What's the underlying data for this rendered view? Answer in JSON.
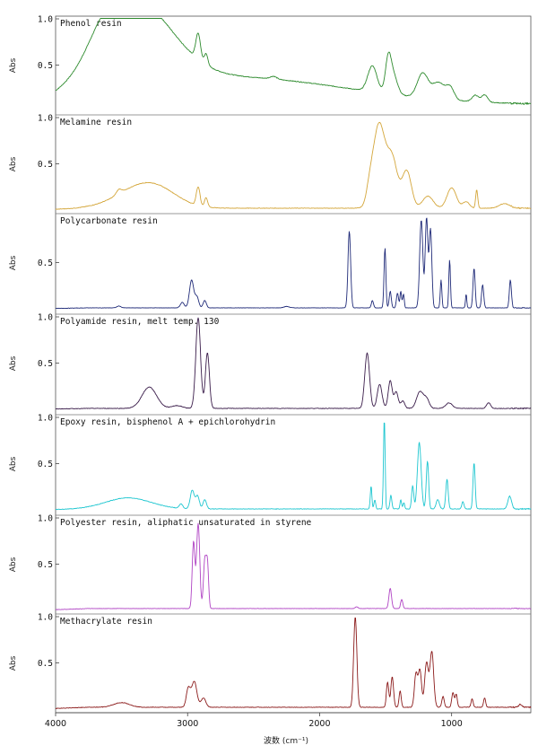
{
  "chart_data": {
    "type": "line",
    "xlabel": "波数 (cm⁻¹)",
    "xlim": [
      4000,
      400
    ],
    "x_reversed": true,
    "x_ticks": [
      4000,
      3000,
      2000,
      1000
    ],
    "grid": false,
    "legend": "none",
    "panels": [
      {
        "title": "Phenol resin",
        "ylabel": "Abs",
        "y_ticks": [
          {
            "value": 1.0,
            "label": "1.0"
          },
          {
            "value": 0.5,
            "label": "0.5"
          }
        ],
        "ylim": [
          0,
          1.0
        ],
        "color": "#2e8b2e",
        "baseline": 0.07,
        "broad": [
          {
            "c": 3400,
            "w": 280,
            "h": 0.88
          },
          {
            "c": 2700,
            "w": 900,
            "h": 0.3
          },
          {
            "c": 3600,
            "w": 130,
            "h": 0.22
          }
        ],
        "peaks": [
          {
            "c": 2920,
            "w": 18,
            "h": 0.28
          },
          {
            "c": 2860,
            "w": 14,
            "h": 0.12
          },
          {
            "c": 1600,
            "w": 35,
            "h": 0.28
          },
          {
            "c": 1480,
            "w": 22,
            "h": 0.36
          },
          {
            "c": 1440,
            "w": 30,
            "h": 0.2
          },
          {
            "c": 1220,
            "w": 40,
            "h": 0.26
          },
          {
            "c": 1100,
            "w": 50,
            "h": 0.18
          },
          {
            "c": 1010,
            "w": 30,
            "h": 0.12
          },
          {
            "c": 820,
            "w": 25,
            "h": 0.07
          },
          {
            "c": 750,
            "w": 22,
            "h": 0.08
          },
          {
            "c": 2350,
            "w": 25,
            "h": 0.03
          }
        ],
        "noise": 0.004
      },
      {
        "title": "Melamine resin",
        "ylabel": "Abs",
        "y_ticks": [
          {
            "value": 1.0,
            "label": "1.0"
          },
          {
            "value": 0.5,
            "label": "0.5"
          }
        ],
        "ylim": [
          0,
          1.0
        ],
        "color": "#d4a63a",
        "baseline": 0.02,
        "broad": [
          {
            "c": 3350,
            "w": 190,
            "h": 0.22
          },
          {
            "c": 3200,
            "w": 150,
            "h": 0.08
          }
        ],
        "peaks": [
          {
            "c": 3520,
            "w": 20,
            "h": 0.05
          },
          {
            "c": 2920,
            "w": 14,
            "h": 0.2
          },
          {
            "c": 2860,
            "w": 12,
            "h": 0.1
          },
          {
            "c": 1620,
            "w": 25,
            "h": 0.15
          },
          {
            "c": 1550,
            "w": 45,
            "h": 0.9
          },
          {
            "c": 1450,
            "w": 40,
            "h": 0.52
          },
          {
            "c": 1340,
            "w": 35,
            "h": 0.4
          },
          {
            "c": 1180,
            "w": 40,
            "h": 0.13
          },
          {
            "c": 1000,
            "w": 35,
            "h": 0.22
          },
          {
            "c": 890,
            "w": 25,
            "h": 0.07
          },
          {
            "c": 810,
            "w": 8,
            "h": 0.2
          },
          {
            "c": 600,
            "w": 40,
            "h": 0.05
          }
        ],
        "noise": 0.003
      },
      {
        "title": "Polycarbonate resin",
        "ylabel": "Abs",
        "y_ticks": [
          {
            "value": 0.5,
            "label": "0.5"
          }
        ],
        "ylim": [
          0,
          1.0
        ],
        "color": "#1f2a78",
        "baseline": 0.01,
        "broad": [],
        "peaks": [
          {
            "c": 3520,
            "w": 15,
            "h": 0.02
          },
          {
            "c": 3040,
            "w": 14,
            "h": 0.06
          },
          {
            "c": 2970,
            "w": 16,
            "h": 0.3
          },
          {
            "c": 2930,
            "w": 14,
            "h": 0.12
          },
          {
            "c": 2870,
            "w": 12,
            "h": 0.08
          },
          {
            "c": 1775,
            "w": 10,
            "h": 0.83
          },
          {
            "c": 1600,
            "w": 8,
            "h": 0.08
          },
          {
            "c": 1505,
            "w": 7,
            "h": 0.65
          },
          {
            "c": 1465,
            "w": 8,
            "h": 0.18
          },
          {
            "c": 1410,
            "w": 8,
            "h": 0.16
          },
          {
            "c": 1385,
            "w": 6,
            "h": 0.18
          },
          {
            "c": 1365,
            "w": 6,
            "h": 0.15
          },
          {
            "c": 1230,
            "w": 12,
            "h": 0.95
          },
          {
            "c": 1190,
            "w": 10,
            "h": 0.97
          },
          {
            "c": 1160,
            "w": 10,
            "h": 0.85
          },
          {
            "c": 1080,
            "w": 6,
            "h": 0.3
          },
          {
            "c": 1015,
            "w": 6,
            "h": 0.52
          },
          {
            "c": 890,
            "w": 5,
            "h": 0.15
          },
          {
            "c": 830,
            "w": 8,
            "h": 0.43
          },
          {
            "c": 765,
            "w": 8,
            "h": 0.25
          },
          {
            "c": 555,
            "w": 8,
            "h": 0.3
          },
          {
            "c": 2250,
            "w": 20,
            "h": 0.015
          }
        ],
        "noise": 0.002
      },
      {
        "title": "Polyamide resin, melt temp. 130",
        "ylabel": "Abs",
        "y_ticks": [
          {
            "value": 1.0,
            "label": "1.0"
          },
          {
            "value": 0.5,
            "label": "0.5"
          }
        ],
        "ylim": [
          0,
          1.0
        ],
        "color": "#3a1c4a",
        "baseline": 0.01,
        "broad": [
          {
            "c": 3290,
            "w": 55,
            "h": 0.23
          },
          {
            "c": 3080,
            "w": 40,
            "h": 0.03
          }
        ],
        "peaks": [
          {
            "c": 2920,
            "w": 18,
            "h": 0.98
          },
          {
            "c": 2850,
            "w": 15,
            "h": 0.6
          },
          {
            "c": 1640,
            "w": 18,
            "h": 0.6
          },
          {
            "c": 1545,
            "w": 18,
            "h": 0.26
          },
          {
            "c": 1465,
            "w": 15,
            "h": 0.3
          },
          {
            "c": 1420,
            "w": 15,
            "h": 0.18
          },
          {
            "c": 1370,
            "w": 15,
            "h": 0.08
          },
          {
            "c": 1240,
            "w": 25,
            "h": 0.18
          },
          {
            "c": 1190,
            "w": 20,
            "h": 0.1
          },
          {
            "c": 1020,
            "w": 25,
            "h": 0.06
          },
          {
            "c": 720,
            "w": 15,
            "h": 0.06
          }
        ],
        "noise": 0.003
      },
      {
        "title": "Epoxy resin, bisphenol A + epichlorohydrin",
        "ylabel": "Abs",
        "y_ticks": [
          {
            "value": 1.0,
            "label": "1.0"
          },
          {
            "value": 0.5,
            "label": "0.5"
          }
        ],
        "ylim": [
          0,
          1.0
        ],
        "color": "#1ec6d0",
        "baseline": 0.01,
        "broad": [
          {
            "c": 3450,
            "w": 170,
            "h": 0.12
          }
        ],
        "peaks": [
          {
            "c": 3050,
            "w": 12,
            "h": 0.05
          },
          {
            "c": 2965,
            "w": 15,
            "h": 0.2
          },
          {
            "c": 2925,
            "w": 14,
            "h": 0.14
          },
          {
            "c": 2870,
            "w": 13,
            "h": 0.1
          },
          {
            "c": 1610,
            "w": 6,
            "h": 0.25
          },
          {
            "c": 1582,
            "w": 6,
            "h": 0.1
          },
          {
            "c": 1510,
            "w": 6,
            "h": 0.98
          },
          {
            "c": 1460,
            "w": 7,
            "h": 0.15
          },
          {
            "c": 1385,
            "w": 6,
            "h": 0.1
          },
          {
            "c": 1362,
            "w": 6,
            "h": 0.07
          },
          {
            "c": 1295,
            "w": 8,
            "h": 0.25
          },
          {
            "c": 1245,
            "w": 14,
            "h": 0.72
          },
          {
            "c": 1183,
            "w": 9,
            "h": 0.52
          },
          {
            "c": 1105,
            "w": 12,
            "h": 0.1
          },
          {
            "c": 1035,
            "w": 9,
            "h": 0.32
          },
          {
            "c": 915,
            "w": 8,
            "h": 0.08
          },
          {
            "c": 830,
            "w": 8,
            "h": 0.5
          },
          {
            "c": 560,
            "w": 14,
            "h": 0.14
          }
        ],
        "noise": 0.003
      },
      {
        "title": "Polyester resin, aliphatic unsaturated in styrene",
        "ylabel": "Abs",
        "y_ticks": [
          {
            "value": 1.0,
            "label": "1.0"
          },
          {
            "value": 0.5,
            "label": "0.5"
          }
        ],
        "ylim": [
          0,
          1.0
        ],
        "color": "#b044c4",
        "baseline": 0.02,
        "broad": [],
        "peaks": [
          {
            "c": 2955,
            "w": 10,
            "h": 0.72
          },
          {
            "c": 2920,
            "w": 12,
            "h": 0.92
          },
          {
            "c": 2870,
            "w": 10,
            "h": 0.52
          },
          {
            "c": 2850,
            "w": 9,
            "h": 0.48
          },
          {
            "c": 1465,
            "w": 10,
            "h": 0.22
          },
          {
            "c": 1378,
            "w": 8,
            "h": 0.1
          },
          {
            "c": 1720,
            "w": 10,
            "h": 0.02
          }
        ],
        "noise": 0.002
      },
      {
        "title": "Methacrylate resin",
        "ylabel": "Abs",
        "y_ticks": [
          {
            "value": 1.0,
            "label": "1.0"
          },
          {
            "value": 0.5,
            "label": "0.5"
          }
        ],
        "ylim": [
          0,
          1.0
        ],
        "color": "#8b1a1a",
        "baseline": 0.02,
        "broad": [
          {
            "c": 3500,
            "w": 60,
            "h": 0.05
          }
        ],
        "peaks": [
          {
            "c": 2995,
            "w": 15,
            "h": 0.2
          },
          {
            "c": 2950,
            "w": 20,
            "h": 0.28
          },
          {
            "c": 2880,
            "w": 18,
            "h": 0.1
          },
          {
            "c": 1730,
            "w": 12,
            "h": 0.98
          },
          {
            "c": 1485,
            "w": 9,
            "h": 0.27
          },
          {
            "c": 1450,
            "w": 10,
            "h": 0.33
          },
          {
            "c": 1390,
            "w": 8,
            "h": 0.18
          },
          {
            "c": 1270,
            "w": 12,
            "h": 0.36
          },
          {
            "c": 1240,
            "w": 12,
            "h": 0.4
          },
          {
            "c": 1190,
            "w": 14,
            "h": 0.48
          },
          {
            "c": 1150,
            "w": 14,
            "h": 0.6
          },
          {
            "c": 1065,
            "w": 9,
            "h": 0.12
          },
          {
            "c": 990,
            "w": 9,
            "h": 0.16
          },
          {
            "c": 965,
            "w": 8,
            "h": 0.14
          },
          {
            "c": 845,
            "w": 8,
            "h": 0.09
          },
          {
            "c": 750,
            "w": 8,
            "h": 0.1
          },
          {
            "c": 480,
            "w": 12,
            "h": 0.03
          }
        ],
        "noise": 0.003
      }
    ]
  }
}
